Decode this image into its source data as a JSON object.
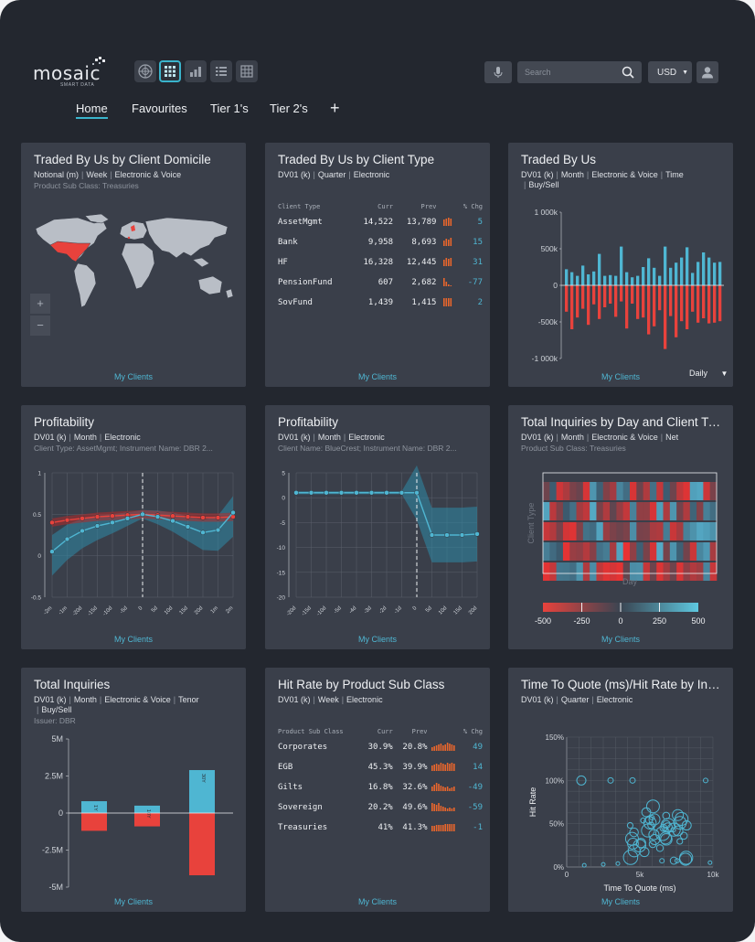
{
  "app": {
    "logo_text": "mosaic",
    "logo_sub": "SMART DATA",
    "search_placeholder": "Search",
    "currency": "USD"
  },
  "tabs": [
    {
      "label": "Home",
      "active": true
    },
    {
      "label": "Favourites"
    },
    {
      "label": "Tier 1's"
    },
    {
      "label": "Tier 2's"
    }
  ],
  "tab_add": "+",
  "cards": {
    "domicile": {
      "title": "Traded By Us by Client Domicile",
      "filters": [
        "Notional (m)",
        "Week",
        "Electronic & Voice"
      ],
      "sub": "Product Sub Class: Treasuries",
      "zoom_in": "+",
      "zoom_out": "−",
      "footer": "My Clients"
    },
    "client_type": {
      "title": "Traded By Us by Client Type",
      "filters": [
        "DV01 (k)",
        "Quarter",
        "Electronic"
      ],
      "headers": [
        "Client Type",
        "Curr",
        "Prev",
        "% Chg"
      ],
      "rows": [
        {
          "name": "AssetMgmt",
          "curr": "14,522",
          "prev": "13,789",
          "chg": "5"
        },
        {
          "name": "Bank",
          "curr": "9,958",
          "prev": "8,693",
          "chg": "15"
        },
        {
          "name": "HF",
          "curr": "16,328",
          "prev": "12,445",
          "chg": "31"
        },
        {
          "name": "PensionFund",
          "curr": "607",
          "prev": "2,682",
          "chg": "-77"
        },
        {
          "name": "SovFund",
          "curr": "1,439",
          "prev": "1,415",
          "chg": "2"
        }
      ],
      "footer": "My Clients"
    },
    "traded": {
      "title": "Traded By Us",
      "filters": [
        "DV01 (k)",
        "Month",
        "Electronic & Voice",
        "Time",
        "Buy/Sell"
      ],
      "period": "Daily",
      "footer": "My Clients"
    },
    "profit1": {
      "title": "Profitability",
      "filters": [
        "DV01 (k)",
        "Month",
        "Electronic"
      ],
      "sub": "Client Type: AssetMgmt; Instrument Name: DBR 2...",
      "footer": "My Clients"
    },
    "profit2": {
      "title": "Profitability",
      "filters": [
        "DV01 (k)",
        "Month",
        "Electronic"
      ],
      "sub": "Client Name: BlueCrest; Instrument Name: DBR 2...",
      "footer": "My Clients"
    },
    "inquiries_day": {
      "title": "Total Inquiries by Day and Client Type",
      "filters": [
        "DV01 (k)",
        "Month",
        "Electronic & Voice",
        "Net"
      ],
      "sub": "Product Sub Class: Treasuries",
      "footer": "My Clients"
    },
    "total_inquiries": {
      "title": "Total Inquiries",
      "filters": [
        "DV01 (k)",
        "Month",
        "Electronic & Voice",
        "Tenor",
        "Buy/Sell"
      ],
      "sub": "Issuer: DBR",
      "footer": "My Clients"
    },
    "hit_rate": {
      "title": "Hit Rate by Product Sub Class",
      "filters": [
        "DV01 (k)",
        "Week",
        "Electronic"
      ],
      "headers": [
        "Product Sub Class",
        "Curr",
        "Prev",
        "% Chg"
      ],
      "rows": [
        {
          "name": "Corporates",
          "curr": "30.9%",
          "prev": "20.8%",
          "chg": "49"
        },
        {
          "name": "EGB",
          "curr": "45.3%",
          "prev": "39.9%",
          "chg": "14"
        },
        {
          "name": "Gilts",
          "curr": "16.8%",
          "prev": "32.6%",
          "chg": "-49"
        },
        {
          "name": "Sovereign",
          "curr": "20.2%",
          "prev": "49.6%",
          "chg": "-59"
        },
        {
          "name": "Treasuries",
          "curr": "41%",
          "prev": "41.3%",
          "chg": "-1"
        }
      ],
      "footer": "My Clients"
    },
    "ttq": {
      "title": "Time To Quote (ms)/Hit Rate by Instr...",
      "filters": [
        "DV01 (k)",
        "Quarter",
        "Electronic"
      ],
      "footer": "My Clients"
    }
  },
  "chart_data": [
    {
      "id": "traded_by_us",
      "type": "bar",
      "ylim": [
        -1000000,
        1000000
      ],
      "yticks": [
        "1 000k",
        "500k",
        "0",
        "-500k",
        "-1 000k"
      ],
      "buy": [
        220000,
        180000,
        130000,
        270000,
        150000,
        190000,
        430000,
        130000,
        140000,
        130000,
        530000,
        180000,
        110000,
        130000,
        250000,
        370000,
        240000,
        130000,
        530000,
        240000,
        310000,
        380000,
        520000,
        170000,
        320000,
        450000,
        380000,
        310000,
        320000
      ],
      "sell": [
        -360000,
        -600000,
        -440000,
        -320000,
        -540000,
        -260000,
        -460000,
        -300000,
        -250000,
        -430000,
        -220000,
        -590000,
        -250000,
        -460000,
        -440000,
        -670000,
        -560000,
        -340000,
        -870000,
        -420000,
        -710000,
        -490000,
        -600000,
        -360000,
        -510000,
        -450000,
        -520000,
        -510000,
        -490000
      ]
    },
    {
      "id": "profitability_1",
      "type": "line",
      "x": [
        "-2m",
        "-1m",
        "-20d",
        "-15d",
        "-10d",
        "-5d",
        "0",
        "5d",
        "10d",
        "15d",
        "20d",
        "1m",
        "2m"
      ],
      "ylim": [
        -0.5,
        1
      ],
      "yticks": [
        "1",
        "0.5",
        "0",
        "-0.5"
      ],
      "series": [
        {
          "values": [
            0.4,
            0.43,
            0.45,
            0.47,
            0.48,
            0.49,
            0.5,
            0.49,
            0.48,
            0.47,
            0.46,
            0.46,
            0.47
          ]
        },
        {
          "values": [
            0.05,
            0.2,
            0.3,
            0.36,
            0.4,
            0.45,
            0.5,
            0.47,
            0.42,
            0.35,
            0.28,
            0.31,
            0.52
          ]
        }
      ]
    },
    {
      "id": "profitability_2",
      "type": "line",
      "x": [
        "-20d",
        "-15d",
        "-10d",
        "-5d",
        "-4d",
        "-3d",
        "-2d",
        "-1d",
        "0",
        "5d",
        "10d",
        "15d",
        "20d"
      ],
      "ylim": [
        -20,
        5
      ],
      "yticks": [
        "5",
        "0",
        "-5",
        "-10",
        "-15",
        "-20"
      ],
      "series": [
        {
          "values": [
            1,
            1,
            1,
            1,
            1,
            1,
            1,
            1,
            1,
            -7.5,
            -7.5,
            -7.5,
            -7.3
          ]
        }
      ]
    },
    {
      "id": "inquiries_heatmap",
      "type": "heatmap",
      "xlabel": "Day",
      "ylabel": "Client Type",
      "scale": [
        -500,
        -250,
        0,
        250,
        500
      ]
    },
    {
      "id": "total_inquiries",
      "type": "bar",
      "ylim": [
        -5000000,
        5000000
      ],
      "yticks": [
        "5M",
        "2.5M",
        "0",
        "-2.5M",
        "-5M"
      ],
      "categories": [
        "1Y",
        "10Y",
        "30Y"
      ],
      "positive": [
        800000,
        500000,
        2900000
      ],
      "negative": [
        -1200000,
        -900000,
        -4200000
      ]
    },
    {
      "id": "time_to_quote",
      "type": "scatter",
      "xlabel": "Time To Quote (ms)",
      "ylabel": "Hit Rate",
      "xticks": [
        "0",
        "5k",
        "10k"
      ],
      "yticks": [
        "150%",
        "100%",
        "50%",
        "0%"
      ],
      "xlim": [
        0,
        10000
      ],
      "ylim": [
        0,
        150
      ]
    }
  ]
}
